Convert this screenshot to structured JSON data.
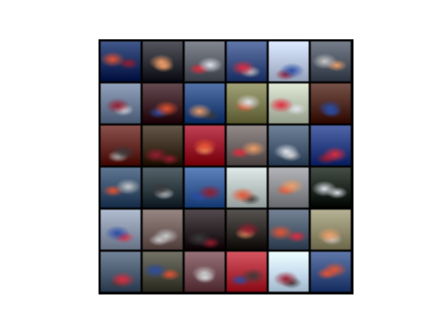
{
  "image": {
    "subject": "generated-car-samples",
    "rows": 6,
    "cols": 6,
    "tiles": [
      [
        "#1d2f5a",
        "#2b2c33",
        "#5a5e66",
        "#3c4e7a",
        "#b8c3d8",
        "#4e5560"
      ],
      [
        "#6c7a90",
        "#3a2228",
        "#2f4a78",
        "#7a7a55",
        "#b9c0b0",
        "#4a2a22"
      ],
      [
        "#5c2a26",
        "#3a2e22",
        "#8a1d2c",
        "#6a6262",
        "#4a5a6e",
        "#2c3e78"
      ],
      [
        "#3a4e66",
        "#2e3a40",
        "#3a5a8c",
        "#b8c2c0",
        "#8a8c90",
        "#1d2620"
      ],
      [
        "#8a94a6",
        "#6e5e5c",
        "#2a2226",
        "#2e2a28",
        "#4e5a6a",
        "#8e8a70"
      ],
      [
        "#4c5a6c",
        "#4a4a40",
        "#6a4a50",
        "#a0303a",
        "#c8dceb",
        "#3a4e7a"
      ]
    ]
  }
}
